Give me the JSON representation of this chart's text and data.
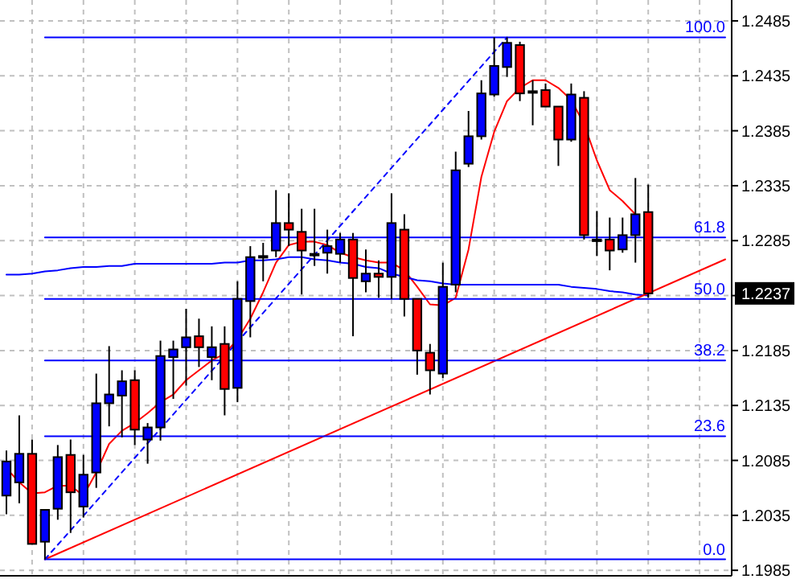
{
  "chart_data": {
    "type": "candlestick",
    "categories": [
      null,
      null,
      null,
      null,
      null,
      null,
      null,
      null,
      null,
      null,
      null,
      null,
      null,
      null,
      null,
      null,
      null,
      null,
      null,
      null,
      null,
      null,
      null,
      null,
      null,
      null,
      null,
      null,
      null,
      null,
      null,
      null,
      null,
      null,
      null,
      null,
      null,
      null,
      null,
      null,
      null,
      null,
      null,
      null,
      null,
      null,
      null,
      null,
      null,
      null,
      null,
      null,
      null,
      null,
      null,
      null,
      null
    ],
    "ohlc": [
      [
        1.2053,
        1.2094,
        1.2036,
        1.2084
      ],
      [
        1.2065,
        1.2126,
        1.2046,
        1.2091
      ],
      [
        1.2091,
        1.2104,
        1.2009,
        1.2009
      ],
      [
        1.2011,
        1.204,
        1.1995,
        1.204
      ],
      [
        1.2041,
        1.2099,
        1.2031,
        1.2088
      ],
      [
        1.209,
        1.2104,
        1.2019,
        1.2056
      ],
      [
        1.2043,
        1.209,
        1.2033,
        1.2072
      ],
      [
        1.2074,
        1.2164,
        1.206,
        1.2137
      ],
      [
        1.2137,
        1.2189,
        1.2116,
        1.2145
      ],
      [
        1.2144,
        1.2167,
        1.2106,
        1.2157
      ],
      [
        1.2158,
        1.2167,
        1.2099,
        1.2113
      ],
      [
        1.2104,
        1.2119,
        1.2082,
        1.2115
      ],
      [
        1.2115,
        1.2194,
        1.2103,
        1.218
      ],
      [
        1.2179,
        1.2194,
        1.2141,
        1.2186
      ],
      [
        1.2188,
        1.2223,
        1.2153,
        1.2197
      ],
      [
        1.2198,
        1.2214,
        1.217,
        1.2188
      ],
      [
        1.2179,
        1.2207,
        1.2158,
        1.2188
      ],
      [
        1.2191,
        1.2207,
        1.2126,
        1.215
      ],
      [
        1.2151,
        1.2248,
        1.2138,
        1.2232
      ],
      [
        1.223,
        1.228,
        1.2197,
        1.227
      ],
      [
        1.2271,
        1.2283,
        1.2248,
        1.2271
      ],
      [
        1.2276,
        1.2331,
        1.227,
        1.2301
      ],
      [
        1.2301,
        1.2328,
        1.228,
        1.2295
      ],
      [
        1.2293,
        1.2314,
        1.2236,
        1.2276
      ],
      [
        1.2273,
        1.2314,
        1.2262,
        1.2273
      ],
      [
        1.2274,
        1.2295,
        1.2255,
        1.228
      ],
      [
        1.2273,
        1.2292,
        1.2265,
        1.2286
      ],
      [
        1.2286,
        1.2292,
        1.2198,
        1.2251
      ],
      [
        1.2248,
        1.2277,
        1.2238,
        1.2255
      ],
      [
        1.2255,
        1.2267,
        1.2233,
        1.2252
      ],
      [
        1.2252,
        1.2328,
        1.2232,
        1.2301
      ],
      [
        1.2295,
        1.2309,
        1.2216,
        1.2232
      ],
      [
        1.2232,
        1.2232,
        1.2163,
        1.2185
      ],
      [
        1.2183,
        1.2191,
        1.2145,
        1.2167
      ],
      [
        1.2164,
        1.2265,
        1.216,
        1.2243
      ],
      [
        1.2245,
        1.2366,
        1.2238,
        1.2349
      ],
      [
        1.2355,
        1.2403,
        1.2352,
        1.238
      ],
      [
        1.238,
        1.2431,
        1.2377,
        1.2419
      ],
      [
        1.2418,
        1.247,
        1.2416,
        1.2444
      ],
      [
        1.2443,
        1.247,
        1.2434,
        1.2465
      ],
      [
        1.2463,
        1.2466,
        1.2412,
        1.2419
      ],
      [
        1.2421,
        1.2431,
        1.239,
        1.2421
      ],
      [
        1.2422,
        1.2428,
        1.2407,
        1.2407
      ],
      [
        1.2407,
        1.2407,
        1.2353,
        1.2377
      ],
      [
        1.2377,
        1.2428,
        1.2375,
        1.2418
      ],
      [
        1.2415,
        1.2421,
        1.2286,
        1.229
      ],
      [
        1.2286,
        1.2312,
        1.2271,
        1.2286
      ],
      [
        1.2286,
        1.2306,
        1.2258,
        1.2276
      ],
      [
        1.2277,
        1.2306,
        1.2274,
        1.229
      ],
      [
        1.229,
        1.2342,
        1.2265,
        1.2309
      ],
      [
        1.2311,
        1.2336,
        1.2233,
        1.2237
      ],
      null,
      null,
      null,
      null,
      null,
      null
    ],
    "colors": [
      "#0000ff",
      "#0000ff",
      "#ff0000",
      "#0000ff",
      "#0000ff",
      "#ff0000",
      "#0000ff",
      "#0000ff",
      "#0000ff",
      "#0000ff",
      "#ff0000",
      "#0000ff",
      "#0000ff",
      "#0000ff",
      "#0000ff",
      "#ff0000",
      "#0000ff",
      "#ff0000",
      "#0000ff",
      "#0000ff",
      "#000000",
      "#0000ff",
      "#ff0000",
      "#ff0000",
      "#000000",
      "#0000ff",
      "#0000ff",
      "#ff0000",
      "#0000ff",
      "#ff0000",
      "#0000ff",
      "#ff0000",
      "#ff0000",
      "#ff0000",
      "#0000ff",
      "#0000ff",
      "#0000ff",
      "#0000ff",
      "#0000ff",
      "#0000ff",
      "#ff0000",
      "#000000",
      "#ff0000",
      "#ff0000",
      "#0000ff",
      "#ff0000",
      "#000000",
      "#ff0000",
      "#0000ff",
      "#0000ff",
      "#ff0000",
      null,
      null,
      null,
      null,
      null,
      null
    ],
    "series": [
      {
        "type": "line",
        "color": "#ff0000",
        "values": [
          1.2078,
          1.2065,
          1.2055,
          1.2056,
          1.2062,
          1.2062,
          1.2053,
          1.2074,
          1.21,
          1.2112,
          1.2119,
          1.2128,
          1.2138,
          1.2145,
          1.2158,
          1.2167,
          1.2176,
          1.2182,
          1.2195,
          1.2214,
          1.2238,
          1.2265,
          1.2281,
          1.2284,
          1.2284,
          1.2281,
          1.2274,
          1.227,
          1.2267,
          1.2265,
          1.2265,
          1.2258,
          1.2243,
          1.2227,
          1.2226,
          1.2233,
          1.2277,
          1.2343,
          1.2384,
          1.2412,
          1.2424,
          1.2431,
          1.2431,
          1.2424,
          1.2413,
          1.2391,
          1.2358,
          1.2331,
          1.2321,
          1.2309,
          null,
          null,
          null,
          null,
          null,
          null,
          null
        ]
      },
      {
        "type": "line",
        "color": "#0000ff",
        "values": [
          1.2254,
          1.2254,
          1.2255,
          1.2257,
          1.2258,
          1.226,
          1.2261,
          1.2261,
          1.2262,
          1.2262,
          1.2264,
          1.2264,
          1.2264,
          1.2264,
          1.2264,
          1.2264,
          1.2264,
          1.2265,
          1.2265,
          1.2267,
          1.2267,
          1.2268,
          1.227,
          1.227,
          1.2268,
          1.2267,
          1.2265,
          1.2264,
          1.2261,
          1.226,
          1.2255,
          1.2252,
          1.2249,
          1.2248,
          1.2246,
          1.2245,
          1.2245,
          1.2245,
          1.2245,
          1.2245,
          1.2245,
          1.2245,
          1.2245,
          1.2245,
          1.2243,
          1.2242,
          1.2241,
          1.2239,
          1.2238,
          1.2236,
          1.2235,
          null,
          null,
          null,
          null,
          null,
          null
        ]
      },
      {
        "type": "line",
        "color": "#ff0000",
        "values": [
          null,
          null,
          null,
          1.1995,
          null,
          null,
          null,
          null,
          null,
          null,
          null,
          null,
          null,
          null,
          null,
          null,
          null,
          null,
          null,
          null,
          null,
          null,
          null,
          null,
          null,
          null,
          null,
          null,
          null,
          null,
          null,
          null,
          null,
          null,
          null,
          null,
          null,
          null,
          null,
          null,
          null,
          null,
          null,
          null,
          null,
          null,
          null,
          null,
          null,
          null,
          null,
          null,
          null,
          null,
          null,
          null,
          1.2268
        ]
      },
      {
        "type": "line",
        "color": "#0000ff",
        "line_style": "dashed",
        "values": [
          null,
          null,
          null,
          1.1995,
          null,
          null,
          null,
          null,
          null,
          null,
          null,
          null,
          null,
          null,
          null,
          null,
          null,
          null,
          null,
          null,
          null,
          null,
          null,
          null,
          null,
          null,
          null,
          null,
          null,
          null,
          null,
          null,
          null,
          null,
          null,
          null,
          null,
          null,
          null,
          1.247,
          null,
          null,
          null,
          null,
          null,
          null,
          null,
          null,
          null,
          null,
          null,
          null,
          null,
          null,
          null,
          null,
          null
        ]
      },
      {
        "type": "line",
        "name": "100.0",
        "color": "#0000ff",
        "values": [
          null,
          null,
          null,
          1.247,
          null,
          null,
          null,
          null,
          null,
          null,
          null,
          null,
          null,
          null,
          null,
          null,
          null,
          null,
          null,
          null,
          null,
          null,
          null,
          null,
          null,
          null,
          null,
          null,
          null,
          null,
          null,
          null,
          null,
          null,
          null,
          null,
          null,
          null,
          null,
          null,
          null,
          null,
          null,
          null,
          null,
          null,
          null,
          null,
          null,
          null,
          null,
          null,
          null,
          null,
          null,
          null,
          1.247
        ]
      },
      {
        "type": "line",
        "name": "61.8",
        "color": "#0000ff",
        "values": [
          null,
          null,
          null,
          1.2288,
          null,
          null,
          null,
          null,
          null,
          null,
          null,
          null,
          null,
          null,
          null,
          null,
          null,
          null,
          null,
          null,
          null,
          null,
          null,
          null,
          null,
          null,
          null,
          null,
          null,
          null,
          null,
          null,
          null,
          null,
          null,
          null,
          null,
          null,
          null,
          null,
          null,
          null,
          null,
          null,
          null,
          null,
          null,
          null,
          null,
          null,
          null,
          null,
          null,
          null,
          null,
          null,
          1.2288
        ]
      },
      {
        "type": "line",
        "name": "50.0",
        "color": "#0000ff",
        "values": [
          null,
          null,
          null,
          1.2232,
          null,
          null,
          null,
          null,
          null,
          null,
          null,
          null,
          null,
          null,
          null,
          null,
          null,
          null,
          null,
          null,
          null,
          null,
          null,
          null,
          null,
          null,
          null,
          null,
          null,
          null,
          null,
          null,
          null,
          null,
          null,
          null,
          null,
          null,
          null,
          null,
          null,
          null,
          null,
          null,
          null,
          null,
          null,
          null,
          null,
          null,
          null,
          null,
          null,
          null,
          null,
          null,
          1.2232
        ]
      },
      {
        "type": "line",
        "name": "38.2",
        "color": "#0000ff",
        "values": [
          null,
          null,
          null,
          1.2176,
          null,
          null,
          null,
          null,
          null,
          null,
          null,
          null,
          null,
          null,
          null,
          null,
          null,
          null,
          null,
          null,
          null,
          null,
          null,
          null,
          null,
          null,
          null,
          null,
          null,
          null,
          null,
          null,
          null,
          null,
          null,
          null,
          null,
          null,
          null,
          null,
          null,
          null,
          null,
          null,
          null,
          null,
          null,
          null,
          null,
          null,
          null,
          null,
          null,
          null,
          null,
          null,
          1.2176
        ]
      },
      {
        "type": "line",
        "name": "23.6",
        "color": "#0000ff",
        "values": [
          null,
          null,
          null,
          1.2107,
          null,
          null,
          null,
          null,
          null,
          null,
          null,
          null,
          null,
          null,
          null,
          null,
          null,
          null,
          null,
          null,
          null,
          null,
          null,
          null,
          null,
          null,
          null,
          null,
          null,
          null,
          null,
          null,
          null,
          null,
          null,
          null,
          null,
          null,
          null,
          null,
          null,
          null,
          null,
          null,
          null,
          null,
          null,
          null,
          null,
          null,
          null,
          null,
          null,
          null,
          null,
          null,
          1.2107
        ]
      },
      {
        "type": "line",
        "name": "0.0",
        "color": "#0000ff",
        "values": [
          null,
          null,
          null,
          1.1995,
          null,
          null,
          null,
          null,
          null,
          null,
          null,
          null,
          null,
          null,
          null,
          null,
          null,
          null,
          null,
          null,
          null,
          null,
          null,
          null,
          null,
          null,
          null,
          null,
          null,
          null,
          null,
          null,
          null,
          null,
          null,
          null,
          null,
          null,
          null,
          null,
          null,
          null,
          null,
          null,
          null,
          null,
          null,
          null,
          null,
          null,
          null,
          null,
          null,
          null,
          null,
          null,
          1.1995
        ]
      }
    ],
    "ylim": [
      1.198,
      1.2504
    ],
    "yticks": [
      1.1985,
      1.2035,
      1.2085,
      1.2135,
      1.2185,
      {
        "value": 1.2235,
        "label": null
      },
      1.2285,
      1.2335,
      1.2385,
      1.2435,
      1.2485
    ],
    "grid": true,
    "tick_labels": "y",
    "annotations": [
      {
        "text": "1.2237",
        "y": 1.2237
      }
    ]
  }
}
